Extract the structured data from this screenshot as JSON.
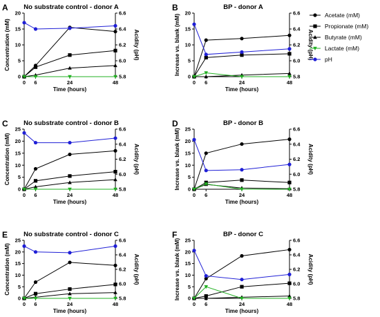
{
  "figure": {
    "legend": {
      "placement": "top-right",
      "entries": [
        {
          "name": "Acetate (mM)",
          "marker": "circle",
          "color": "#000000"
        },
        {
          "name": "Propionate (mM)",
          "marker": "square",
          "color": "#000000"
        },
        {
          "name": "Butyrate (mM)",
          "marker": "triangle",
          "color": "#000000"
        },
        {
          "name": "Lactate (mM)",
          "marker": "triangle-down",
          "color": "#22b022"
        },
        {
          "name": "pH",
          "marker": "circle",
          "color": "#1f1fd6"
        }
      ]
    }
  },
  "chart_data": [
    {
      "panel": "A",
      "type": "line",
      "title": "No substrate control - donor A",
      "xlabel": "Time (hours)",
      "ylabel": "Concentration (mM)",
      "y2label": "Acidity (pH)",
      "x": [
        0,
        6,
        24,
        48
      ],
      "xticks": [
        0,
        6,
        24,
        48
      ],
      "ylim": [
        0,
        20
      ],
      "yticks": [
        0,
        5,
        10,
        15,
        20
      ],
      "y2lim": [
        5.8,
        6.6
      ],
      "y2ticks": [
        "5.8",
        "6.0",
        "6.2",
        "6.4",
        "6.6"
      ],
      "series": [
        {
          "name": "Acetate (mM)",
          "axis": "left",
          "values": [
            0,
            3.5,
            15.5,
            14.2
          ]
        },
        {
          "name": "Propionate (mM)",
          "axis": "left",
          "values": [
            0,
            3.0,
            6.8,
            8.2
          ]
        },
        {
          "name": "Butyrate (mM)",
          "axis": "left",
          "values": [
            0,
            0.5,
            2.7,
            3.5
          ]
        },
        {
          "name": "Lactate (mM)",
          "axis": "left",
          "values": [
            0,
            0,
            0,
            0
          ]
        },
        {
          "name": "pH",
          "axis": "right",
          "values": [
            6.48,
            6.4,
            6.41,
            6.44
          ]
        }
      ]
    },
    {
      "panel": "B",
      "type": "line",
      "title": "BP - donor A",
      "xlabel": "Time (hours)",
      "ylabel": "Increase vs. blank (mM)",
      "y2label": "Acidity (pH)",
      "x": [
        0,
        6,
        24,
        48
      ],
      "xticks": [
        0,
        6,
        24,
        48
      ],
      "ylim": [
        0,
        20
      ],
      "yticks": [
        0,
        5,
        10,
        15,
        20
      ],
      "y2lim": [
        5.8,
        6.6
      ],
      "y2ticks": [
        "5.8",
        "6.0",
        "6.2",
        "6.4",
        "6.6"
      ],
      "series": [
        {
          "name": "Acetate (mM)",
          "axis": "left",
          "values": [
            0,
            11.5,
            12.0,
            13.0
          ]
        },
        {
          "name": "Propionate (mM)",
          "axis": "left",
          "values": [
            0,
            6.0,
            6.8,
            7.2
          ]
        },
        {
          "name": "Butyrate (mM)",
          "axis": "left",
          "values": [
            0,
            0,
            0.5,
            1.0
          ]
        },
        {
          "name": "Lactate (mM)",
          "axis": "left",
          "values": [
            0,
            1.2,
            0,
            0
          ]
        },
        {
          "name": "pH",
          "axis": "right",
          "values": [
            6.46,
            6.08,
            6.11,
            6.15
          ]
        }
      ]
    },
    {
      "panel": "C",
      "type": "line",
      "title": "No substrate control - donor B",
      "xlabel": "Time (hours)",
      "ylabel": "Concentration (mM)",
      "y2label": "Acidity (pH)",
      "x": [
        0,
        6,
        24,
        48
      ],
      "xticks": [
        0,
        6,
        24,
        48
      ],
      "ylim": [
        0,
        25
      ],
      "yticks": [
        0,
        5,
        10,
        15,
        20,
        25
      ],
      "y2lim": [
        5.8,
        6.6
      ],
      "y2ticks": [
        "5.8",
        "6.0",
        "6.2",
        "6.4",
        "6.6"
      ],
      "series": [
        {
          "name": "Acetate (mM)",
          "axis": "left",
          "values": [
            0,
            8.5,
            14.5,
            16.0
          ]
        },
        {
          "name": "Propionate (mM)",
          "axis": "left",
          "values": [
            0,
            3.5,
            5.5,
            7.3
          ]
        },
        {
          "name": "Butyrate (mM)",
          "axis": "left",
          "values": [
            0,
            1.0,
            2.8,
            4.0
          ]
        },
        {
          "name": "Lactate (mM)",
          "axis": "left",
          "values": [
            0,
            0,
            0,
            0
          ]
        },
        {
          "name": "pH",
          "axis": "right",
          "values": [
            6.55,
            6.42,
            6.42,
            6.48
          ]
        }
      ]
    },
    {
      "panel": "D",
      "type": "line",
      "title": "BP - donor B",
      "xlabel": "Time (hours)",
      "ylabel": "Increase vs. blank (mM)",
      "y2label": "Acidity (pH)",
      "x": [
        0,
        6,
        24,
        48
      ],
      "xticks": [
        0,
        6,
        24,
        48
      ],
      "ylim": [
        0,
        25
      ],
      "yticks": [
        0,
        5,
        10,
        15,
        20,
        25
      ],
      "y2lim": [
        5.8,
        6.6
      ],
      "y2ticks": [
        "5.8",
        "6.0",
        "6.2",
        "6.4",
        "6.6"
      ],
      "series": [
        {
          "name": "Acetate (mM)",
          "axis": "left",
          "values": [
            0,
            15.0,
            18.8,
            20.8
          ]
        },
        {
          "name": "Propionate (mM)",
          "axis": "left",
          "values": [
            0,
            2.8,
            3.8,
            2.8
          ]
        },
        {
          "name": "Butyrate (mM)",
          "axis": "left",
          "values": [
            0,
            2.0,
            0.5,
            0.2
          ]
        },
        {
          "name": "Lactate (mM)",
          "axis": "left",
          "values": [
            0,
            2.2,
            0,
            0
          ]
        },
        {
          "name": "pH",
          "axis": "right",
          "values": [
            6.46,
            6.05,
            6.06,
            6.13
          ]
        }
      ]
    },
    {
      "panel": "E",
      "type": "line",
      "title": "No substrate control - donor C",
      "xlabel": "Time (hours)",
      "ylabel": "Concentration (mM)",
      "y2label": "Acidity (pH)",
      "x": [
        0,
        6,
        24,
        48
      ],
      "xticks": [
        0,
        6,
        24,
        48
      ],
      "ylim": [
        0,
        25
      ],
      "yticks": [
        0,
        5,
        10,
        15,
        20,
        25
      ],
      "y2lim": [
        5.8,
        6.6
      ],
      "y2ticks": [
        "5.8",
        "6.0",
        "6.2",
        "6.4",
        "6.6"
      ],
      "series": [
        {
          "name": "Acetate (mM)",
          "axis": "left",
          "values": [
            0,
            7.0,
            15.5,
            14.2
          ]
        },
        {
          "name": "Propionate (mM)",
          "axis": "left",
          "values": [
            0,
            2.0,
            4.0,
            6.0
          ]
        },
        {
          "name": "Butyrate (mM)",
          "axis": "left",
          "values": [
            0,
            0.5,
            2.0,
            2.5
          ]
        },
        {
          "name": "Lactate (mM)",
          "axis": "left",
          "values": [
            0,
            0,
            0,
            0
          ]
        },
        {
          "name": "pH",
          "axis": "right",
          "values": [
            6.52,
            6.44,
            6.43,
            6.52
          ]
        }
      ]
    },
    {
      "panel": "F",
      "type": "line",
      "title": "BP - donor C",
      "xlabel": "Time (hours)",
      "ylabel": "Increase vs. blank (mM)",
      "y2label": "Acidity (pH)",
      "x": [
        0,
        6,
        24,
        48
      ],
      "xticks": [
        0,
        6,
        24,
        48
      ],
      "ylim": [
        0,
        25
      ],
      "yticks": [
        0,
        5,
        10,
        15,
        20,
        25
      ],
      "y2lim": [
        5.8,
        6.6
      ],
      "y2ticks": [
        "5.8",
        "6.0",
        "6.2",
        "6.4",
        "6.6"
      ],
      "series": [
        {
          "name": "Acetate (mM)",
          "axis": "left",
          "values": [
            0,
            8.5,
            18.3,
            21.0
          ]
        },
        {
          "name": "Propionate (mM)",
          "axis": "left",
          "values": [
            0,
            1.0,
            5.0,
            6.5
          ]
        },
        {
          "name": "Butyrate (mM)",
          "axis": "left",
          "values": [
            0,
            0,
            0.5,
            1.0
          ]
        },
        {
          "name": "Lactate (mM)",
          "axis": "left",
          "values": [
            0,
            5.0,
            0,
            0
          ]
        },
        {
          "name": "pH",
          "axis": "right",
          "values": [
            6.46,
            6.11,
            6.06,
            6.13
          ]
        }
      ]
    }
  ]
}
